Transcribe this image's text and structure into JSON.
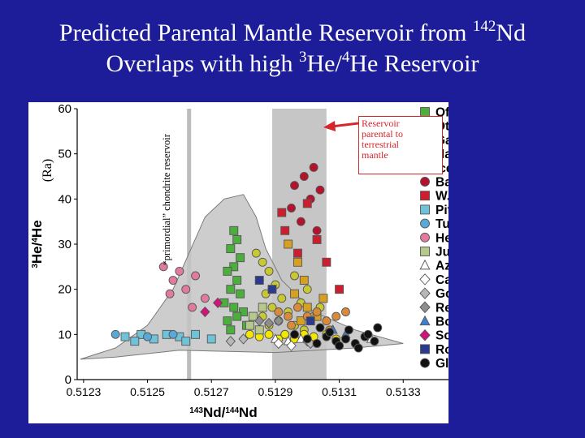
{
  "title": {
    "line1_prefix": "Predicted Parental Mantle Reservoir from ",
    "line1_sup": "142",
    "line1_suffix": "Nd",
    "line2_prefix": "Overlaps with high ",
    "line2_sup1": "3",
    "line2_mid": "He/",
    "line2_sup2": "4",
    "line2_suffix": "He Reservoir"
  },
  "annotation": {
    "line1": "Reservoir",
    "line2": "parental to",
    "line3": "terrestrial",
    "line4": "mantle"
  },
  "vertical_label": "“primordial” chondrite reservoir",
  "chart_data": {
    "type": "scatter",
    "xlabel_sup1": "143",
    "xlabel_mid": "Nd/",
    "xlabel_sup2": "144",
    "xlabel_end": "Nd",
    "ylabel_sup1": "3",
    "ylabel_mid": "He/",
    "ylabel_sup2": "4",
    "ylabel_end": "He",
    "ylabel_unit": "(Ra)",
    "xlim": [
      0.51228,
      0.51334
    ],
    "ylim": [
      0,
      60
    ],
    "x_ticks": [
      "0.5123",
      "0.5125",
      "0.5127",
      "0.5129",
      "0.5131",
      "0.5133"
    ],
    "x_tick_values": [
      0.5123,
      0.5125,
      0.5127,
      0.5129,
      0.5131,
      0.5133
    ],
    "y_ticks": [
      0,
      10,
      20,
      30,
      40,
      50,
      60
    ],
    "chondrite_x": 0.51263,
    "parental_band": [
      0.51289,
      0.51306
    ],
    "envelope": [
      [
        0.51229,
        4.5
      ],
      [
        0.5124,
        7
      ],
      [
        0.5125,
        12
      ],
      [
        0.51258,
        20
      ],
      [
        0.51263,
        28
      ],
      [
        0.51268,
        36
      ],
      [
        0.51274,
        40
      ],
      [
        0.5128,
        41
      ],
      [
        0.51284,
        36
      ],
      [
        0.51287,
        29
      ],
      [
        0.51292,
        22
      ],
      [
        0.51302,
        15
      ],
      [
        0.51315,
        11
      ],
      [
        0.5133,
        8
      ],
      [
        0.51315,
        7
      ],
      [
        0.5129,
        6
      ],
      [
        0.5126,
        6.5
      ],
      [
        0.5124,
        5
      ],
      [
        0.51229,
        4.5
      ]
    ],
    "legend_position": "right",
    "series": [
      {
        "name": "Ofu",
        "color": "#4cae3c",
        "marker": "square",
        "points": [
          [
            0.51277,
            33
          ],
          [
            0.51278,
            31
          ],
          [
            0.51276,
            29
          ],
          [
            0.51279,
            27
          ],
          [
            0.51277,
            25
          ],
          [
            0.51275,
            24
          ],
          [
            0.51278,
            22
          ],
          [
            0.51276,
            20
          ],
          [
            0.51279,
            19
          ],
          [
            0.51274,
            17
          ],
          [
            0.51277,
            16
          ],
          [
            0.5128,
            15
          ],
          [
            0.51278,
            14
          ],
          [
            0.51275,
            13
          ],
          [
            0.51281,
            12
          ],
          [
            0.51276,
            11
          ]
        ]
      },
      {
        "name": "Other Samoa shield",
        "color": "#c8c832",
        "marker": "circle",
        "points": [
          [
            0.51284,
            28
          ],
          [
            0.51286,
            26
          ],
          [
            0.51288,
            24
          ],
          [
            0.51285,
            22
          ],
          [
            0.5129,
            21
          ],
          [
            0.51287,
            19
          ],
          [
            0.51292,
            18
          ],
          [
            0.51289,
            16
          ],
          [
            0.51294,
            15
          ],
          [
            0.51286,
            14
          ],
          [
            0.51291,
            13
          ],
          [
            0.51296,
            12
          ],
          [
            0.51298,
            17
          ],
          [
            0.513,
            20
          ],
          [
            0.51296,
            23
          ],
          [
            0.51302,
            14
          ],
          [
            0.51299,
            11
          ],
          [
            0.51304,
            16
          ],
          [
            0.51293,
            10
          ],
          [
            0.51288,
            12
          ]
        ]
      },
      {
        "name": "Galapagos",
        "color": "#f3e600",
        "marker": "circle",
        "points": [
          [
            0.51282,
            10
          ],
          [
            0.51285,
            9.5
          ],
          [
            0.51288,
            10
          ],
          [
            0.51291,
            9
          ],
          [
            0.51293,
            10
          ],
          [
            0.51296,
            9
          ],
          [
            0.51299,
            10
          ],
          [
            0.51302,
            9.5
          ],
          [
            0.51306,
            10
          ],
          [
            0.51309,
            9
          ]
        ]
      },
      {
        "name": "Hawaii",
        "color": "#d8a020",
        "marker": "square",
        "points": [
          [
            0.51294,
            30
          ],
          [
            0.51297,
            26
          ],
          [
            0.51299,
            22
          ],
          [
            0.51296,
            19
          ],
          [
            0.513,
            16
          ],
          [
            0.51303,
            14
          ],
          [
            0.51298,
            13
          ],
          [
            0.51305,
            18
          ]
        ]
      },
      {
        "name": "Iceland",
        "color": "#d98a3a",
        "marker": "circle",
        "points": [
          [
            0.51291,
            15
          ],
          [
            0.51294,
            14
          ],
          [
            0.51297,
            16
          ],
          [
            0.513,
            14
          ],
          [
            0.51303,
            15
          ],
          [
            0.51306,
            13
          ],
          [
            0.51309,
            14
          ],
          [
            0.51312,
            15
          ],
          [
            0.51295,
            12
          ],
          [
            0.51307,
            11
          ]
        ]
      },
      {
        "name": "Baffin Island",
        "color": "#b5122e",
        "marker": "circle",
        "points": [
          [
            0.51296,
            43
          ],
          [
            0.51299,
            45
          ],
          [
            0.51302,
            47
          ],
          [
            0.51301,
            40
          ],
          [
            0.51295,
            38
          ],
          [
            0.51303,
            33
          ],
          [
            0.51298,
            35
          ],
          [
            0.51304,
            42
          ]
        ]
      },
      {
        "name": "W. Greenland Picrites",
        "color": "#cc1e2e",
        "marker": "square",
        "points": [
          [
            0.51292,
            37
          ],
          [
            0.513,
            39
          ],
          [
            0.51303,
            31
          ],
          [
            0.51297,
            28
          ],
          [
            0.51293,
            33
          ],
          [
            0.5131,
            20
          ],
          [
            0.51306,
            26
          ]
        ]
      },
      {
        "name": "Pitcairn",
        "color": "#6fc2d8",
        "marker": "square",
        "points": [
          [
            0.51243,
            9.5
          ],
          [
            0.51248,
            10
          ],
          [
            0.51252,
            9
          ],
          [
            0.51256,
            10
          ],
          [
            0.5126,
            9.5
          ],
          [
            0.51265,
            10
          ],
          [
            0.5127,
            9
          ],
          [
            0.51246,
            8.5
          ],
          [
            0.51262,
            8.5
          ]
        ]
      },
      {
        "name": "Tubuaii & St. Helena",
        "color": "#58a8d8",
        "marker": "circle",
        "points": [
          [
            0.5124,
            10
          ],
          [
            0.5125,
            9.5
          ],
          [
            0.51258,
            10
          ]
        ]
      },
      {
        "name": "Heardand Kerguelen",
        "color": "#e07a9e",
        "marker": "circle",
        "points": [
          [
            0.51255,
            25
          ],
          [
            0.51258,
            22
          ],
          [
            0.5126,
            24
          ],
          [
            0.51262,
            20
          ],
          [
            0.51265,
            23
          ],
          [
            0.51268,
            18
          ],
          [
            0.51257,
            19
          ],
          [
            0.51264,
            16
          ]
        ]
      },
      {
        "name": "Juan Fernandez",
        "color": "#b7c98a",
        "marker": "square",
        "points": [
          [
            0.51282,
            12
          ],
          [
            0.51285,
            11
          ],
          [
            0.51283,
            14
          ],
          [
            0.51286,
            16
          ]
        ]
      },
      {
        "name": "Azores",
        "color": "#ffffff",
        "marker": "triangle",
        "points": [
          [
            0.5129,
            9
          ],
          [
            0.51294,
            8.5
          ],
          [
            0.51298,
            9
          ],
          [
            0.5132,
            9
          ]
        ]
      },
      {
        "name": "Cape Verde",
        "color": "#ffffff",
        "marker": "diamond",
        "points": [
          [
            0.51291,
            8
          ],
          [
            0.51295,
            7.5
          ],
          [
            0.513,
            8.5
          ]
        ]
      },
      {
        "name": "Gough",
        "color": "#b8b8b8",
        "marker": "diamond",
        "points": [
          [
            0.51276,
            8.5
          ],
          [
            0.5128,
            9
          ],
          [
            0.51301,
            8
          ]
        ]
      },
      {
        "name": "Reunion",
        "color": "#8e8e8e",
        "marker": "diamond",
        "points": [
          [
            0.51285,
            13
          ],
          [
            0.51288,
            12.5
          ],
          [
            0.51291,
            13
          ]
        ]
      },
      {
        "name": "Bouvet",
        "color": "#3f7fd0",
        "marker": "triangle",
        "points": [
          [
            0.51308,
            11
          ],
          [
            0.51312,
            10
          ]
        ]
      },
      {
        "name": "Society (Moorea)",
        "color": "#d1137a",
        "marker": "diamond",
        "points": [
          [
            0.51272,
            17
          ],
          [
            0.51268,
            15
          ]
        ]
      },
      {
        "name": "Rochambeau Bank",
        "color": "#2a3b8e",
        "marker": "square",
        "points": [
          [
            0.51285,
            22
          ],
          [
            0.51289,
            20
          ],
          [
            0.51301,
            13
          ]
        ]
      },
      {
        "name": "Global MORB",
        "color": "#111111",
        "marker": "circle",
        "points": [
          [
            0.513,
            9
          ],
          [
            0.51303,
            8
          ],
          [
            0.51306,
            9.5
          ],
          [
            0.51309,
            8.5
          ],
          [
            0.51312,
            9
          ],
          [
            0.51315,
            8
          ],
          [
            0.51318,
            9.5
          ],
          [
            0.51321,
            8.5
          ],
          [
            0.51307,
            10.5
          ],
          [
            0.51313,
            11
          ],
          [
            0.51319,
            10
          ],
          [
            0.5131,
            7.5
          ],
          [
            0.51316,
            7
          ],
          [
            0.51322,
            11.5
          ],
          [
            0.51296,
            10
          ],
          [
            0.51304,
            11.5
          ]
        ]
      }
    ]
  }
}
